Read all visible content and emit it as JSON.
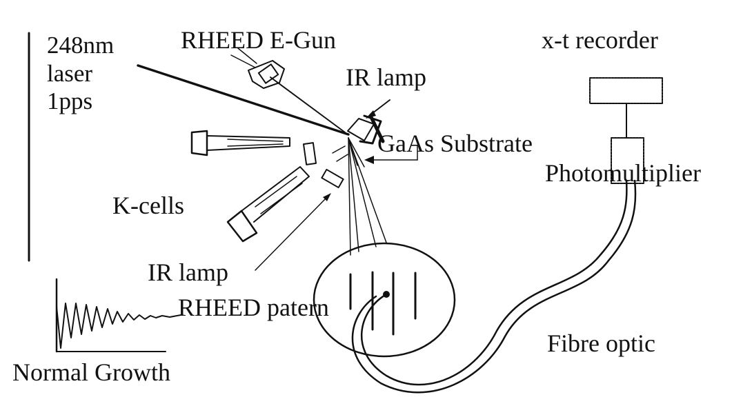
{
  "labels": {
    "laser_line1": "248nm",
    "laser_line2": "laser",
    "laser_line3": "1pps",
    "rheed_gun": "RHEED E-Gun",
    "ir_lamp_top": "IR lamp",
    "substrate": "GaAs Substrate",
    "recorder": "x-t recorder",
    "photomultiplier": "Photomultiplier",
    "kcells": "K-cells",
    "ir_lamp_bottom": "IR lamp",
    "rheed_pattern": "RHEED patern",
    "fibre": "Fibre optic",
    "growth": "Normal Growth"
  }
}
